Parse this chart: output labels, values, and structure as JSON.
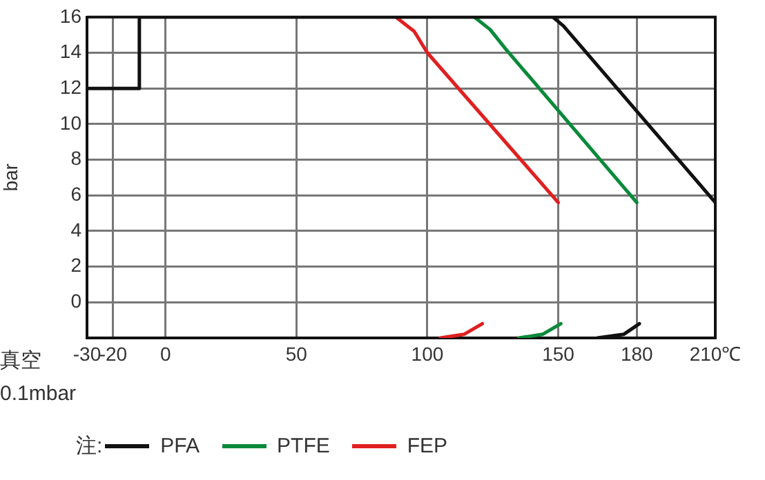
{
  "chart_data": {
    "type": "line",
    "ylabel": "bar",
    "legend_title": "注:",
    "legend": "bottom",
    "grid": true,
    "marker": "none",
    "line_style": "solid",
    "xlim": [
      -30,
      210
    ],
    "xticks": [
      -30,
      -20,
      0,
      50,
      100,
      150,
      180,
      {
        "value": 210,
        "label": "210℃"
      }
    ],
    "ylim": [
      -2,
      16
    ],
    "yticks": [
      0,
      2,
      4,
      6,
      8,
      10,
      12,
      14,
      16
    ],
    "annotations": [
      "真空",
      "0.1mbar"
    ],
    "series": [
      {
        "name": "PFA",
        "color": "#111111",
        "x": [
          -30,
          -10,
          -10,
          148,
          152,
          210,
          null,
          165,
          175,
          181
        ],
        "values": [
          12,
          12,
          16,
          16,
          15.5,
          5.6,
          null,
          -2,
          -1.8,
          -1.2
        ]
      },
      {
        "name": "PTFE",
        "color": "#0a8a3a",
        "x": [
          118,
          124,
          130,
          180,
          null,
          135,
          144,
          151
        ],
        "values": [
          16,
          15.3,
          14.2,
          5.6,
          null,
          -2,
          -1.8,
          -1.2
        ]
      },
      {
        "name": "FEP",
        "color": "#e02020",
        "x": [
          88,
          95,
          100,
          150,
          null,
          105,
          114,
          121
        ],
        "values": [
          16,
          15.2,
          14,
          5.6,
          null,
          -2,
          -1.8,
          -1.2
        ]
      }
    ]
  }
}
